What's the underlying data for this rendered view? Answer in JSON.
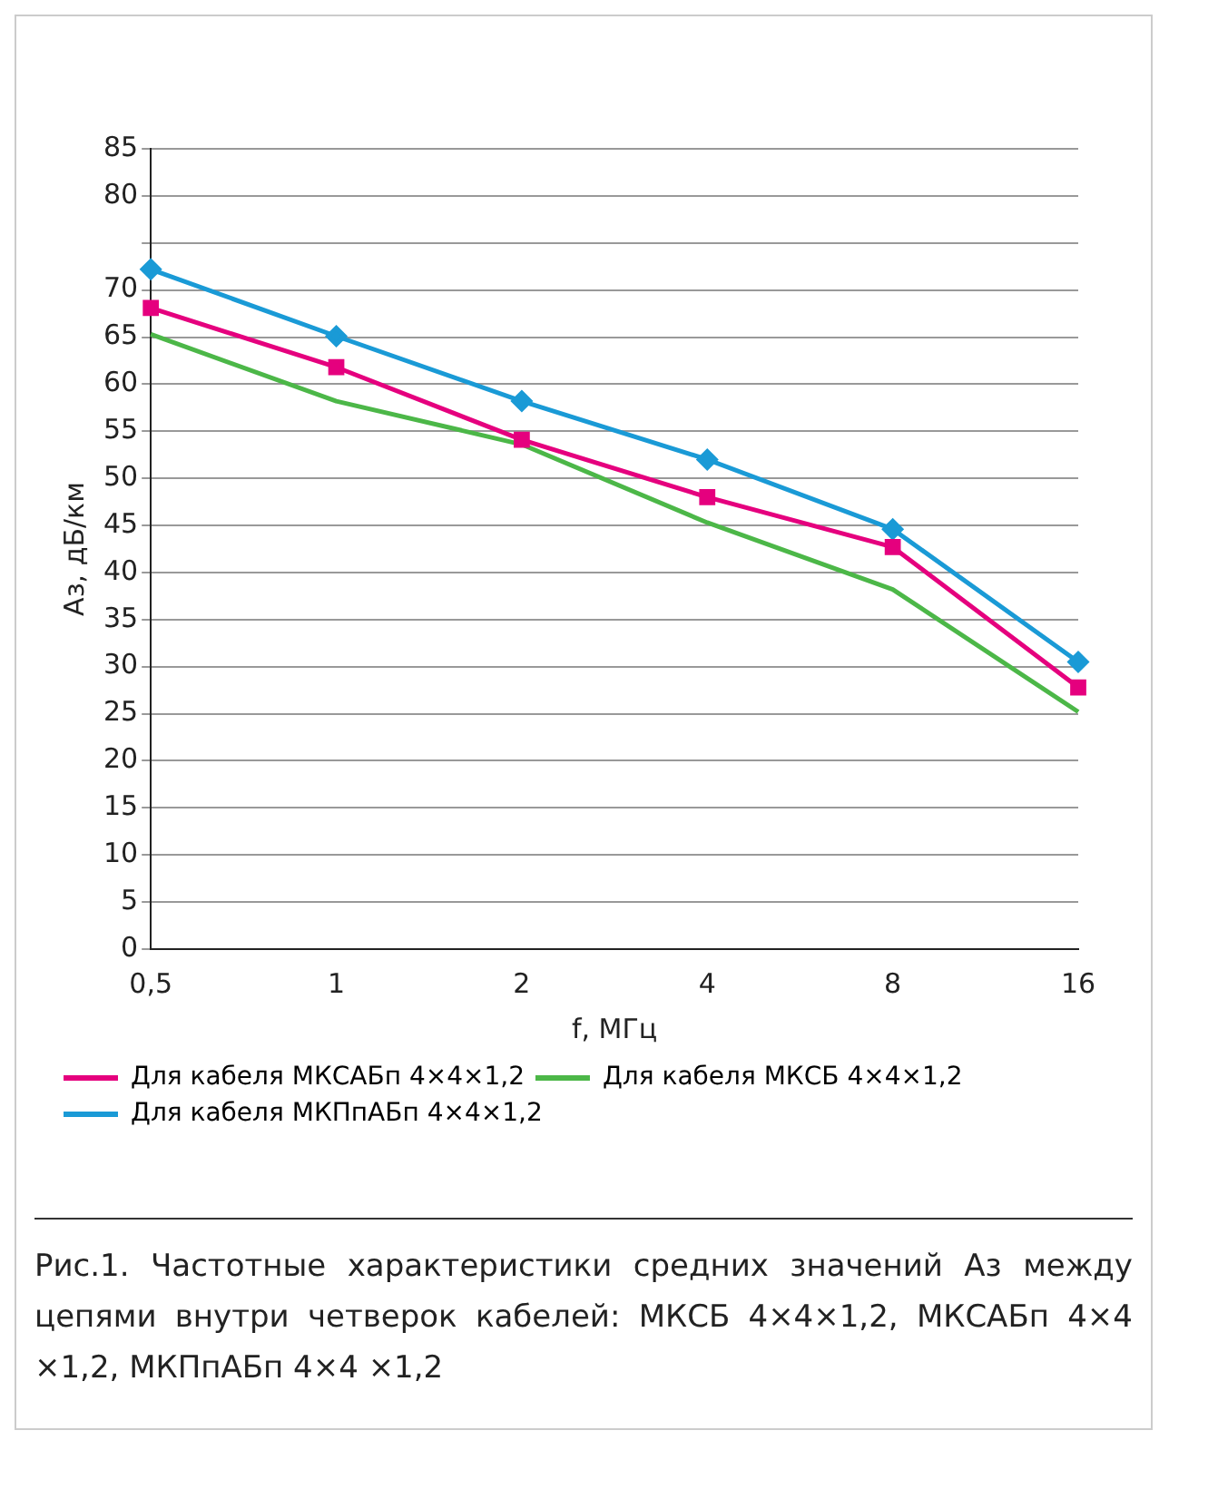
{
  "chart_data": {
    "type": "line",
    "xlabel": "f, МГц",
    "ylabel": "Аз, дБ/км",
    "categories": [
      "0,5",
      "1",
      "2",
      "4",
      "8",
      "16"
    ],
    "series": [
      {
        "name": "Для кабеля МКСАБп 4×4×1,2",
        "color": "#e5007e",
        "marker": "square",
        "values": [
          68.1,
          61.8,
          54.1,
          48,
          42.7,
          27.8
        ]
      },
      {
        "name": "Для кабеля МКСБ 4×4×1,2",
        "color": "#4cb748",
        "marker": "none",
        "values": [
          65.3,
          58.2,
          53.6,
          45.3,
          38.2,
          25.2
        ]
      },
      {
        "name": "Для кабеля МКПпАБп 4×4×1,2",
        "color": "#1a9ad6",
        "marker": "diamond",
        "values": [
          72.2,
          65.1,
          58.2,
          52,
          44.6,
          30.5
        ]
      }
    ],
    "ylim": [
      0,
      85
    ],
    "yticks": [
      0,
      5,
      10,
      15,
      20,
      25,
      30,
      35,
      40,
      45,
      50,
      55,
      60,
      65,
      70,
      {
        "value": 75,
        "label": null
      },
      80,
      85
    ],
    "grid": "y",
    "legend": "bottom left",
    "annotations": [
      "Рис.1. Частотные характеристики средних значений Аз между цепями внутри четверок кабелей: МКСБ 4×4×1,2, МКСАБп 4×4 ×1,2, МКПпАБп 4×4 ×1,2"
    ]
  }
}
